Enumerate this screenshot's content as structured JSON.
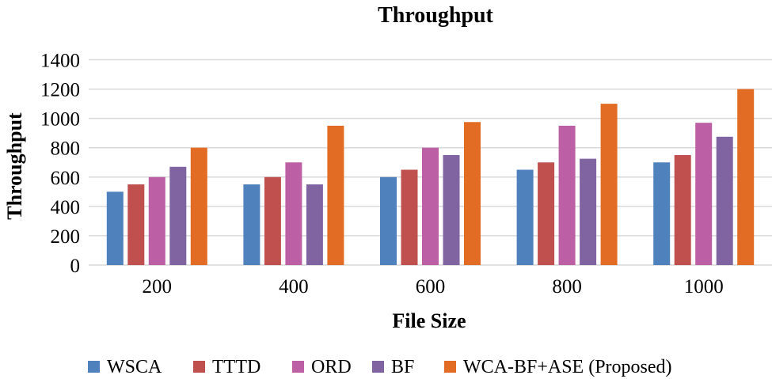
{
  "chart_data": {
    "type": "bar",
    "title": "Throughput",
    "xlabel": "File Size",
    "ylabel": "Throughput",
    "categories": [
      "200",
      "400",
      "600",
      "800",
      "1000"
    ],
    "ylim": [
      0,
      1400
    ],
    "yticks": [
      0,
      200,
      400,
      600,
      800,
      1000,
      1200,
      1400
    ],
    "grid": true,
    "legend_position": "bottom",
    "series": [
      {
        "name": "WSCA",
        "color": "#4f81bd",
        "values": [
          500,
          550,
          600,
          650,
          700
        ]
      },
      {
        "name": "TTTD",
        "color": "#c0504d",
        "values": [
          550,
          600,
          650,
          700,
          750
        ]
      },
      {
        "name": "ORD",
        "color": "#bc5fa5",
        "values": [
          600,
          700,
          800,
          950,
          970
        ]
      },
      {
        "name": "BF",
        "color": "#8064a2",
        "values": [
          670,
          550,
          750,
          725,
          875
        ]
      },
      {
        "name": "WCA-BF+ASE (Proposed)",
        "color": "#e36c24",
        "values": [
          800,
          950,
          975,
          1100,
          1200
        ]
      }
    ]
  }
}
